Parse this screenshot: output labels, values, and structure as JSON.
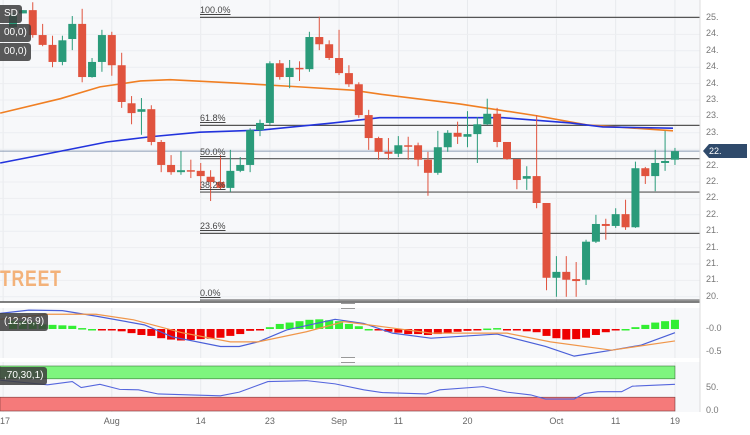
{
  "legend": {
    "symbol_label": "SD",
    "ma1_label": "00,0)",
    "ma2_label": "00,0)",
    "macd_label": "(12,26,9)",
    "rsi_label": ",70,30,1)"
  },
  "logo_text": "TREET",
  "price_badge": "22.",
  "colors": {
    "up": "#2a9b7a",
    "down": "#e0533e",
    "ma_orange": "#f07f23",
    "ma_blue": "#2233dd",
    "macd_line": "#4a5fd8",
    "signal_line": "#f0964a",
    "hist_up": "#33ee33",
    "hist_down": "#ee0000",
    "rsi_line": "#5566dd",
    "rsi_overbought_band": "#7ef57e",
    "rsi_oversold_band": "#f57a7a"
  },
  "chart_data": [
    {
      "type": "candlestick",
      "ohlc": [
        [
          24.86,
          25.08,
          24.82,
          25.05
        ],
        [
          25.07,
          25.12,
          25.07,
          25.12
        ],
        [
          25.12,
          25.24,
          24.7,
          24.74
        ],
        [
          24.74,
          24.91,
          24.57,
          24.59
        ],
        [
          24.59,
          24.73,
          24.25,
          24.33
        ],
        [
          24.33,
          24.73,
          24.28,
          24.66
        ],
        [
          24.68,
          25.03,
          24.51,
          24.91
        ],
        [
          24.91,
          25.14,
          24.02,
          24.1
        ],
        [
          24.1,
          24.39,
          24.09,
          24.33
        ],
        [
          24.33,
          24.82,
          24.18,
          24.74
        ],
        [
          24.74,
          24.79,
          24.12,
          24.28
        ],
        [
          24.28,
          24.47,
          23.63,
          23.72
        ],
        [
          23.7,
          23.81,
          23.38,
          23.55
        ],
        [
          23.57,
          23.78,
          23.22,
          23.61
        ],
        [
          23.61,
          23.67,
          23.06,
          23.11
        ],
        [
          23.11,
          23.14,
          22.65,
          22.76
        ],
        [
          22.76,
          22.91,
          22.61,
          22.65
        ],
        [
          22.65,
          22.97,
          22.61,
          22.68
        ],
        [
          22.68,
          22.84,
          22.56,
          22.67
        ],
        [
          22.67,
          22.79,
          22.38,
          22.59
        ],
        [
          22.58,
          22.68,
          22.21,
          22.5
        ],
        [
          22.5,
          22.91,
          22.38,
          22.41
        ],
        [
          22.41,
          22.99,
          22.35,
          22.67
        ],
        [
          22.67,
          22.88,
          22.65,
          22.76
        ],
        [
          22.76,
          23.32,
          22.65,
          23.29
        ],
        [
          23.29,
          23.45,
          23.2,
          23.4
        ],
        [
          23.4,
          24.34,
          23.37,
          24.31
        ],
        [
          24.31,
          24.36,
          24.06,
          24.1
        ],
        [
          24.1,
          24.36,
          23.93,
          24.24
        ],
        [
          24.24,
          24.34,
          24.04,
          24.22
        ],
        [
          24.22,
          24.79,
          24.18,
          24.71
        ],
        [
          24.71,
          25.02,
          24.51,
          24.6
        ],
        [
          24.6,
          24.66,
          24.36,
          24.39
        ],
        [
          24.39,
          24.82,
          24.13,
          24.16
        ],
        [
          24.16,
          24.28,
          23.95,
          23.99
        ],
        [
          23.99,
          24.02,
          23.48,
          23.52
        ],
        [
          23.52,
          23.6,
          22.99,
          23.17
        ],
        [
          23.17,
          23.19,
          22.84,
          22.96
        ],
        [
          22.96,
          23.17,
          22.84,
          22.93
        ],
        [
          22.93,
          23.2,
          22.88,
          23.06
        ],
        [
          23.06,
          23.19,
          22.84,
          23.05
        ],
        [
          23.06,
          23.1,
          22.74,
          22.84
        ],
        [
          22.84,
          22.96,
          22.29,
          22.64
        ],
        [
          22.64,
          23.28,
          22.61,
          23.03
        ],
        [
          23.03,
          23.29,
          22.96,
          23.25
        ],
        [
          23.25,
          23.42,
          23.08,
          23.19
        ],
        [
          23.19,
          23.58,
          23.03,
          23.23
        ],
        [
          23.23,
          23.49,
          22.79,
          23.38
        ],
        [
          23.38,
          23.77,
          23.37,
          23.54
        ],
        [
          23.54,
          23.63,
          23.03,
          23.11
        ],
        [
          23.11,
          23.11,
          22.84,
          22.85
        ],
        [
          22.85,
          22.85,
          22.39,
          22.53
        ],
        [
          22.55,
          22.74,
          22.38,
          22.59
        ],
        [
          22.59,
          23.52,
          22.1,
          22.18
        ],
        [
          22.18,
          22.18,
          20.85,
          21.04
        ],
        [
          21.04,
          21.37,
          20.75,
          21.13
        ],
        [
          21.13,
          21.37,
          20.75,
          21.01
        ],
        [
          21.02,
          21.28,
          20.75,
          20.99
        ],
        [
          21.01,
          21.62,
          20.93,
          21.59
        ],
        [
          21.59,
          22.0,
          21.57,
          21.86
        ],
        [
          21.86,
          21.94,
          21.62,
          21.83
        ],
        [
          21.83,
          22.1,
          21.8,
          22.01
        ],
        [
          22.01,
          22.23,
          21.77,
          21.81
        ],
        [
          21.81,
          22.81,
          21.8,
          22.71
        ],
        [
          22.71,
          22.73,
          22.47,
          22.59
        ],
        [
          22.59,
          22.99,
          22.36,
          22.79
        ],
        [
          22.79,
          23.28,
          22.67,
          22.82
        ],
        [
          22.84,
          23.02,
          22.76,
          22.97
        ]
      ],
      "moving_averages": [
        {
          "color": "#f07f23",
          "points": [
            [
              -1.3,
              23.55
            ],
            [
              4.8,
              23.77
            ],
            [
              8.8,
              23.95
            ],
            [
              12.9,
              24.04
            ],
            [
              15.9,
              24.06
            ],
            [
              22.3,
              24.01
            ],
            [
              29,
              23.95
            ],
            [
              34.4,
              23.9
            ],
            [
              37.1,
              23.84
            ],
            [
              45.2,
              23.69
            ],
            [
              53,
              23.51
            ],
            [
              58.1,
              23.37
            ],
            [
              66.8,
              23.28
            ]
          ]
        },
        {
          "color": "#2233dd",
          "points": [
            [
              -1.3,
              22.79
            ],
            [
              5.5,
              22.99
            ],
            [
              9.5,
              23.11
            ],
            [
              13.9,
              23.19
            ],
            [
              18.9,
              23.26
            ],
            [
              25,
              23.29
            ],
            [
              32.4,
              23.4
            ],
            [
              37.1,
              23.48
            ],
            [
              49.6,
              23.48
            ],
            [
              56.4,
              23.4
            ],
            [
              59.7,
              23.34
            ],
            [
              66.8,
              23.32
            ]
          ]
        }
      ],
      "fibonacci": {
        "high": 25.01,
        "low": 20.7,
        "levels": [
          {
            "ratio": 1.0,
            "label": "100.0%"
          },
          {
            "ratio": 0.618,
            "label": "61.8%"
          },
          {
            "ratio": 0.5,
            "label": "50.0%"
          },
          {
            "ratio": 0.382,
            "label": "38.2%"
          },
          {
            "ratio": 0.236,
            "label": "23.6%"
          },
          {
            "ratio": 0.0,
            "label": "0.0%"
          }
        ]
      },
      "last_price": 22.97,
      "y_tick_labels": [
        "25.",
        "24.",
        "24.",
        "24.",
        "24.",
        "23.",
        "23.",
        "23.",
        "",
        "22.",
        "22.",
        "22.",
        "22.",
        "21.",
        "21.",
        "21.",
        "21.",
        "20."
      ],
      "ylim": [
        20.7,
        25.2
      ],
      "x_tick_labels": [
        "17",
        "Aug",
        "14",
        "23",
        "Sep",
        "11",
        "20",
        "Oct",
        "11",
        "19"
      ]
    },
    {
      "type": "macd",
      "histogram": [
        0.18,
        0.17,
        0.15,
        0.1,
        0.09,
        0.08,
        0.07,
        0.02,
        0.0,
        -0.01,
        -0.03,
        -0.05,
        -0.09,
        -0.13,
        -0.15,
        -0.2,
        -0.23,
        -0.25,
        -0.24,
        -0.22,
        -0.21,
        -0.19,
        -0.15,
        -0.11,
        -0.04,
        -0.01,
        0.04,
        0.11,
        0.14,
        0.17,
        0.2,
        0.21,
        0.19,
        0.17,
        0.11,
        0.06,
        0.0,
        -0.02,
        -0.06,
        -0.08,
        -0.11,
        -0.11,
        -0.13,
        -0.11,
        -0.09,
        -0.06,
        -0.04,
        -0.02,
        0.01,
        0.02,
        -0.02,
        -0.03,
        -0.05,
        -0.07,
        -0.15,
        -0.2,
        -0.23,
        -0.22,
        -0.19,
        -0.13,
        -0.07,
        -0.03,
        0.0,
        0.04,
        0.09,
        0.14,
        0.17,
        0.2
      ],
      "macd_line": [
        [
          -1.3,
          0.34
        ],
        [
          1.6,
          0.41
        ],
        [
          5,
          0.4
        ],
        [
          8.4,
          0.28
        ],
        [
          13.3,
          0.09
        ],
        [
          16.1,
          -0.17
        ],
        [
          21,
          -0.38
        ],
        [
          22.9,
          -0.38
        ],
        [
          24.8,
          -0.28
        ],
        [
          27.7,
          -0.02
        ],
        [
          32.6,
          0.21
        ],
        [
          35.5,
          0.12
        ],
        [
          38.4,
          -0.09
        ],
        [
          42.3,
          -0.2
        ],
        [
          49,
          -0.11
        ],
        [
          53.9,
          -0.38
        ],
        [
          56.8,
          -0.59
        ],
        [
          60.6,
          -0.46
        ],
        [
          63.6,
          -0.35
        ],
        [
          67,
          -0.08
        ]
      ],
      "signal_line": [
        [
          -1.3,
          0.21
        ],
        [
          3.5,
          0.32
        ],
        [
          8.4,
          0.32
        ],
        [
          12.2,
          0.2
        ],
        [
          17.1,
          -0.08
        ],
        [
          22,
          -0.28
        ],
        [
          24.8,
          -0.28
        ],
        [
          29.7,
          -0.06
        ],
        [
          33.5,
          0.16
        ],
        [
          37.4,
          0.05
        ],
        [
          42.3,
          -0.09
        ],
        [
          50,
          -0.09
        ],
        [
          54.4,
          -0.28
        ],
        [
          60.6,
          -0.46
        ],
        [
          67,
          -0.26
        ]
      ],
      "y_tick_labels": [
        "-0.0",
        "-0.5"
      ]
    },
    {
      "type": "rsi",
      "line": [
        [
          -1.3,
          67
        ],
        [
          3.5,
          57
        ],
        [
          6,
          64
        ],
        [
          6.9,
          51
        ],
        [
          8.8,
          58
        ],
        [
          10.8,
          47
        ],
        [
          12.7,
          46
        ],
        [
          14.7,
          37
        ],
        [
          18,
          35
        ],
        [
          21,
          33
        ],
        [
          22.9,
          41
        ],
        [
          23.9,
          49
        ],
        [
          25.8,
          64
        ],
        [
          29.7,
          66
        ],
        [
          32.6,
          59
        ],
        [
          35.5,
          46
        ],
        [
          37.4,
          40
        ],
        [
          41.8,
          37
        ],
        [
          43.2,
          46
        ],
        [
          47.6,
          53
        ],
        [
          50,
          41
        ],
        [
          52.4,
          35
        ],
        [
          53.9,
          26
        ],
        [
          56.8,
          26
        ],
        [
          57.8,
          38
        ],
        [
          59.2,
          42
        ],
        [
          61.6,
          42
        ],
        [
          62.7,
          54
        ],
        [
          67,
          58
        ]
      ],
      "overbought": 70,
      "oversold": 30,
      "y_tick_labels": [
        "50.",
        "0.0"
      ]
    }
  ]
}
